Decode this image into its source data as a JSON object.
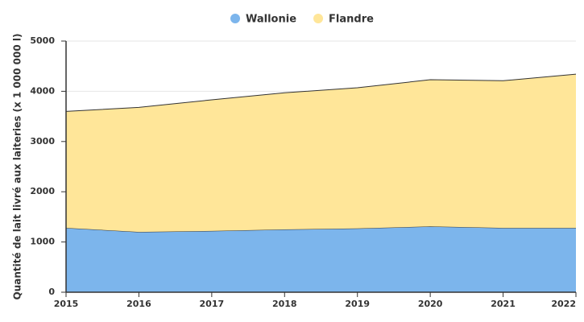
{
  "chart_data": {
    "type": "stacked-area",
    "y_label": "Quantité de lait livré aux laiteries (x 1 000 000 l)",
    "x": [
      2015,
      2016,
      2017,
      2018,
      2019,
      2020,
      2021,
      2022
    ],
    "xlim": [
      2015,
      2022
    ],
    "xticks": [
      2015,
      2016,
      2017,
      2018,
      2019,
      2020,
      2021,
      2022
    ],
    "ylim": [
      0,
      5000
    ],
    "yticks": [
      0,
      1000,
      2000,
      3000,
      4000,
      5000
    ],
    "grid": true,
    "legend": "top",
    "series": [
      {
        "name": "Wallonie",
        "color": "#7cb5ec",
        "values": [
          1280,
          1200,
          1220,
          1250,
          1270,
          1310,
          1280,
          1280
        ]
      },
      {
        "name": "Flandre",
        "color": "#ffe699",
        "values": [
          2320,
          2480,
          2610,
          2720,
          2800,
          2920,
          2930,
          3060
        ]
      }
    ]
  }
}
